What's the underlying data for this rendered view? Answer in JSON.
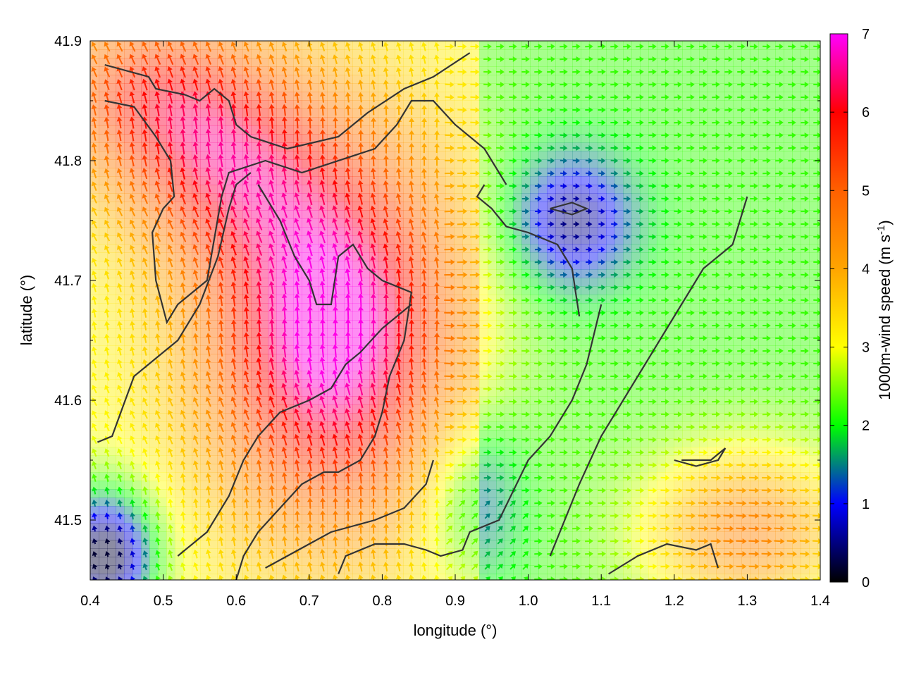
{
  "chart_data": {
    "type": "heatmap",
    "subtype": "wind-vector-field",
    "xlabel": "longitude (°)",
    "ylabel": "latitude (°)",
    "xlim": [
      0.4,
      1.4
    ],
    "ylim": [
      41.45,
      41.9
    ],
    "xticks": [
      0.4,
      0.5,
      0.6,
      0.7,
      0.8,
      0.9,
      1.0,
      1.1,
      1.2,
      1.3,
      1.4
    ],
    "yticks": [
      41.5,
      41.6,
      41.7,
      41.8,
      41.9
    ],
    "grid": false,
    "colorbar": {
      "label": "1000m-wind speed (m s",
      "label_sup": "-1",
      "label_end": ")",
      "range": [
        0,
        7
      ],
      "ticks": [
        0,
        1,
        2,
        3,
        4,
        5,
        6,
        7
      ],
      "stops": [
        {
          "value": 0,
          "color": "#000000"
        },
        {
          "value": 1,
          "color": "#0000ff"
        },
        {
          "value": 2,
          "color": "#00ff00"
        },
        {
          "value": 3,
          "color": "#ffff00"
        },
        {
          "value": 4,
          "color": "#ffa500"
        },
        {
          "value": 5,
          "color": "#ff6000"
        },
        {
          "value": 6,
          "color": "#ff0000"
        },
        {
          "value": 7,
          "color": "#ff00ff"
        }
      ]
    },
    "contour_color": "#333333",
    "contours": [
      [
        [
          0.42,
          41.88
        ],
        [
          0.48,
          41.87
        ],
        [
          0.49,
          41.86
        ],
        [
          0.53,
          41.855
        ],
        [
          0.55,
          41.85
        ],
        [
          0.57,
          41.86
        ],
        [
          0.59,
          41.85
        ],
        [
          0.6,
          41.83
        ],
        [
          0.62,
          41.82
        ],
        [
          0.67,
          41.81
        ],
        [
          0.74,
          41.82
        ],
        [
          0.78,
          41.84
        ],
        [
          0.83,
          41.86
        ],
        [
          0.87,
          41.87
        ],
        [
          0.92,
          41.89
        ]
      ],
      [
        [
          0.42,
          41.85
        ],
        [
          0.46,
          41.845
        ],
        [
          0.49,
          41.82
        ],
        [
          0.51,
          41.8
        ],
        [
          0.515,
          41.77
        ],
        [
          0.5,
          41.76
        ],
        [
          0.485,
          41.74
        ],
        [
          0.49,
          41.7
        ],
        [
          0.505,
          41.665
        ],
        [
          0.52,
          41.68
        ],
        [
          0.56,
          41.7
        ],
        [
          0.58,
          41.77
        ],
        [
          0.59,
          41.79
        ],
        [
          0.64,
          41.8
        ],
        [
          0.69,
          41.79
        ],
        [
          0.79,
          41.81
        ],
        [
          0.82,
          41.83
        ],
        [
          0.84,
          41.85
        ],
        [
          0.87,
          41.85
        ],
        [
          0.9,
          41.83
        ],
        [
          0.94,
          41.81
        ],
        [
          0.96,
          41.79
        ],
        [
          0.97,
          41.78
        ]
      ],
      [
        [
          0.94,
          41.78
        ],
        [
          0.93,
          41.77
        ],
        [
          0.95,
          41.76
        ],
        [
          0.97,
          41.745
        ],
        [
          1.0,
          41.74
        ],
        [
          1.04,
          41.73
        ],
        [
          1.05,
          41.72
        ],
        [
          1.06,
          41.71
        ],
        [
          1.065,
          41.69
        ],
        [
          1.07,
          41.67
        ]
      ],
      [
        [
          0.63,
          41.78
        ],
        [
          0.66,
          41.75
        ],
        [
          0.68,
          41.72
        ],
        [
          0.7,
          41.7
        ],
        [
          0.71,
          41.68
        ],
        [
          0.73,
          41.68
        ],
        [
          0.74,
          41.72
        ],
        [
          0.76,
          41.73
        ],
        [
          0.78,
          41.71
        ],
        [
          0.8,
          41.7
        ],
        [
          0.84,
          41.69
        ],
        [
          0.83,
          41.65
        ],
        [
          0.81,
          41.62
        ],
        [
          0.8,
          41.59
        ],
        [
          0.79,
          41.57
        ],
        [
          0.77,
          41.55
        ],
        [
          0.74,
          41.54
        ],
        [
          0.72,
          41.54
        ],
        [
          0.69,
          41.53
        ],
        [
          0.66,
          41.51
        ],
        [
          0.63,
          41.49
        ],
        [
          0.61,
          41.47
        ],
        [
          0.6,
          41.45
        ]
      ],
      [
        [
          0.41,
          41.565
        ],
        [
          0.43,
          41.57
        ],
        [
          0.445,
          41.595
        ],
        [
          0.46,
          41.62
        ],
        [
          0.49,
          41.635
        ],
        [
          0.52,
          41.65
        ],
        [
          0.55,
          41.68
        ],
        [
          0.575,
          41.72
        ],
        [
          0.59,
          41.76
        ],
        [
          0.6,
          41.78
        ],
        [
          0.62,
          41.79
        ]
      ],
      [
        [
          0.52,
          41.47
        ],
        [
          0.56,
          41.49
        ],
        [
          0.59,
          41.52
        ],
        [
          0.61,
          41.55
        ],
        [
          0.63,
          41.57
        ],
        [
          0.66,
          41.59
        ],
        [
          0.7,
          41.6
        ],
        [
          0.73,
          41.61
        ],
        [
          0.75,
          41.63
        ],
        [
          0.77,
          41.64
        ],
        [
          0.8,
          41.66
        ],
        [
          0.84,
          41.68
        ]
      ],
      [
        [
          0.64,
          41.46
        ],
        [
          0.67,
          41.47
        ],
        [
          0.7,
          41.48
        ],
        [
          0.73,
          41.49
        ],
        [
          0.76,
          41.495
        ],
        [
          0.79,
          41.5
        ],
        [
          0.83,
          41.51
        ],
        [
          0.86,
          41.53
        ],
        [
          0.87,
          41.55
        ]
      ],
      [
        [
          0.74,
          41.455
        ],
        [
          0.75,
          41.47
        ],
        [
          0.79,
          41.48
        ],
        [
          0.83,
          41.48
        ],
        [
          0.86,
          41.475
        ],
        [
          0.88,
          41.47
        ],
        [
          0.91,
          41.475
        ],
        [
          0.92,
          41.49
        ],
        [
          0.96,
          41.5
        ],
        [
          1.0,
          41.55
        ],
        [
          1.03,
          41.57
        ],
        [
          1.06,
          41.6
        ],
        [
          1.08,
          41.63
        ],
        [
          1.1,
          41.68
        ]
      ],
      [
        [
          1.03,
          41.47
        ],
        [
          1.05,
          41.5
        ],
        [
          1.07,
          41.53
        ],
        [
          1.1,
          41.57
        ],
        [
          1.13,
          41.6
        ],
        [
          1.16,
          41.63
        ],
        [
          1.19,
          41.66
        ],
        [
          1.22,
          41.69
        ],
        [
          1.24,
          41.71
        ],
        [
          1.26,
          41.72
        ],
        [
          1.28,
          41.73
        ],
        [
          1.3,
          41.77
        ]
      ],
      [
        [
          1.11,
          41.455
        ],
        [
          1.15,
          41.47
        ],
        [
          1.19,
          41.48
        ],
        [
          1.23,
          41.475
        ],
        [
          1.25,
          41.48
        ],
        [
          1.26,
          41.46
        ]
      ],
      [
        [
          1.2,
          41.55
        ],
        [
          1.23,
          41.545
        ],
        [
          1.26,
          41.55
        ],
        [
          1.27,
          41.56
        ],
        [
          1.25,
          41.55
        ],
        [
          1.21,
          41.55
        ]
      ],
      [
        [
          1.03,
          41.76
        ],
        [
          1.06,
          41.755
        ],
        [
          1.08,
          41.76
        ],
        [
          1.06,
          41.765
        ],
        [
          1.03,
          41.76
        ]
      ]
    ]
  }
}
